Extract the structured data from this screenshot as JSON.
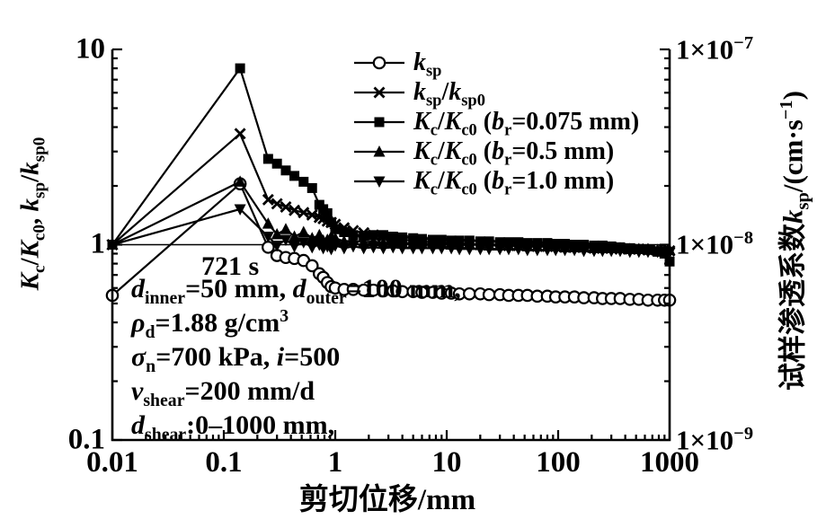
{
  "chart_data": {
    "type": "line",
    "title": "",
    "grid": false,
    "legend_position": "upper-center-right, no frame",
    "x_axis": {
      "label": "剪切位移/mm",
      "scale": "log",
      "range": [
        0.01,
        1000
      ],
      "tick_labels": [
        "0.01",
        "0.1",
        "1",
        "10",
        "100",
        "1000"
      ],
      "tick_values": [
        0.01,
        0.1,
        1,
        10,
        100,
        1000
      ]
    },
    "y_left": {
      "label": "Kc/Kc0, ksp/ksp0",
      "label_html": "<i>K</i><sub>c</sub>/<i>K</i><sub>c0</sub>, <i>k</i><sub>sp</sub>/<i>k</i><sub>sp0</sub>",
      "scale": "log",
      "range": [
        0.1,
        10
      ],
      "tick_labels": [
        "10",
        "1",
        "0.1"
      ],
      "tick_values": [
        10,
        1,
        0.1
      ]
    },
    "y_right": {
      "label": "试样渗透系数ksp/(cm·s−1)",
      "label_html": "试样渗透系数<i>k</i><sub>sp</sub>/(cm·s<sup>−1</sup>)",
      "scale": "log",
      "range": [
        1e-09,
        1e-07
      ],
      "tick_labels": [
        "1×10−7",
        "1×10−8",
        "1×10−9"
      ],
      "tick_labels_html": [
        "1×10<sup>−7</sup>",
        "1×10<sup>−8</sup>",
        "1×10<sup>−9</sup>"
      ],
      "tick_values": [
        1e-07,
        1e-08,
        1e-09
      ]
    },
    "reference_line_y": 1,
    "series_color": "#000000",
    "series": [
      {
        "name": "k_sp",
        "axis": "right",
        "marker": "circle-open",
        "units": "cm/s",
        "x": [
          0.01,
          0.14,
          0.25,
          0.3,
          0.36,
          0.43,
          0.52,
          0.62,
          0.72,
          0.78,
          0.85,
          0.92,
          1.0,
          1.2,
          1.45,
          1.8,
          2.2,
          2.7,
          3.3,
          4,
          5,
          6,
          7.5,
          9,
          11,
          13,
          16,
          20,
          24,
          30,
          36,
          44,
          53,
          65,
          80,
          95,
          115,
          140,
          170,
          210,
          250,
          300,
          360,
          440,
          530,
          640,
          780,
          900,
          1000
        ],
        "y": [
          5.5e-09,
          2.05e-08,
          9.7e-09,
          8.8e-09,
          8.6e-09,
          8.5e-09,
          8.3e-09,
          7.8e-09,
          7.1e-09,
          6.8e-09,
          6.4e-09,
          6.1e-09,
          6e-09,
          5.9e-09,
          5.9e-09,
          5.85e-09,
          5.85e-09,
          5.8e-09,
          5.8e-09,
          5.75e-09,
          5.75e-09,
          5.7e-09,
          5.7e-09,
          5.65e-09,
          5.65e-09,
          5.6e-09,
          5.6e-09,
          5.6e-09,
          5.55e-09,
          5.55e-09,
          5.5e-09,
          5.5e-09,
          5.5e-09,
          5.45e-09,
          5.45e-09,
          5.4e-09,
          5.4e-09,
          5.4e-09,
          5.35e-09,
          5.35e-09,
          5.3e-09,
          5.3e-09,
          5.3e-09,
          5.25e-09,
          5.25e-09,
          5.2e-09,
          5.2e-09,
          5.2e-09,
          5.2e-09
        ]
      },
      {
        "name": "k_sp/k_sp0",
        "axis": "left",
        "marker": "x",
        "units": "ratio",
        "x": [
          0.01,
          0.14,
          0.25,
          0.3,
          0.36,
          0.43,
          0.52,
          0.62,
          0.72,
          0.78,
          0.85,
          0.92,
          1.0,
          1.2,
          1.45,
          1.8,
          2.2,
          2.7,
          3.3,
          4,
          5,
          6,
          7.5,
          9,
          11,
          13,
          16,
          20,
          24,
          30,
          36,
          44,
          53,
          65,
          80,
          95,
          115,
          140,
          170,
          210,
          250,
          300,
          360,
          440,
          530,
          640,
          780,
          900,
          1000
        ],
        "y": [
          1,
          3.7,
          1.7,
          1.62,
          1.56,
          1.5,
          1.46,
          1.42,
          1.38,
          1.36,
          1.32,
          1.3,
          1.27,
          1.22,
          1.18,
          1.15,
          1.12,
          1.1,
          1.08,
          1.06,
          1.05,
          1.04,
          1.03,
          1.02,
          1.02,
          1.01,
          1.01,
          1.0,
          1.0,
          1.0,
          0.99,
          0.99,
          0.99,
          0.98,
          0.98,
          0.98,
          0.97,
          0.97,
          0.97,
          0.96,
          0.96,
          0.96,
          0.95,
          0.95,
          0.95,
          0.94,
          0.94,
          0.94,
          0.93
        ]
      },
      {
        "name": "K_c/K_c0 (b_r=0.075 mm)",
        "axis": "left",
        "marker": "square",
        "units": "ratio",
        "x": [
          0.01,
          0.14,
          0.25,
          0.3,
          0.36,
          0.43,
          0.52,
          0.62,
          0.72,
          0.78,
          0.85,
          0.92,
          1.0,
          1.2,
          1.45,
          1.8,
          2.2,
          2.7,
          3.3,
          4,
          5,
          6,
          7.5,
          9,
          11,
          13,
          16,
          20,
          24,
          30,
          36,
          44,
          53,
          65,
          80,
          95,
          115,
          140,
          170,
          210,
          250,
          300,
          360,
          440,
          530,
          640,
          780,
          900,
          1000
        ],
        "y": [
          1,
          8.0,
          2.75,
          2.6,
          2.4,
          2.25,
          2.1,
          1.95,
          1.6,
          1.52,
          1.45,
          1.3,
          1.2,
          1.16,
          1.12,
          1.11,
          1.12,
          1.12,
          1.1,
          1.09,
          1.08,
          1.07,
          1.06,
          1.06,
          1.05,
          1.05,
          1.05,
          1.04,
          1.04,
          1.03,
          1.03,
          1.03,
          1.02,
          1.02,
          1.02,
          1.01,
          1.01,
          1.0,
          1.0,
          0.99,
          0.99,
          0.98,
          0.97,
          0.96,
          0.95,
          0.94,
          0.92,
          0.9,
          0.82
        ]
      },
      {
        "name": "K_c/K_c0 (b_r=0.5 mm)",
        "axis": "left",
        "marker": "triangle-up",
        "units": "ratio",
        "x": [
          0.01,
          0.14,
          0.25,
          0.3,
          0.36,
          0.43,
          0.52,
          0.62,
          0.72,
          0.78,
          0.85,
          0.92,
          1.0,
          1.2,
          1.45,
          1.8,
          2.2,
          2.7,
          3.3,
          4,
          5,
          6,
          7.5,
          9,
          11,
          13,
          16,
          20,
          24,
          30,
          36,
          44,
          53,
          65,
          80,
          95,
          115,
          140,
          170,
          210,
          250,
          300,
          360,
          440,
          530,
          640,
          780,
          900,
          1000
        ],
        "y": [
          1,
          2.1,
          1.28,
          1.13,
          1.2,
          1.1,
          1.16,
          1.08,
          1.12,
          1.05,
          1.06,
          1.1,
          1.08,
          1.04,
          1.05,
          1.03,
          1.04,
          1.02,
          1.03,
          1.02,
          1.02,
          1.01,
          1.01,
          1.01,
          1.0,
          1.0,
          1.0,
          1.0,
          0.99,
          0.99,
          0.99,
          0.99,
          0.98,
          0.98,
          0.98,
          0.98,
          0.97,
          0.97,
          0.97,
          0.96,
          0.96,
          0.96,
          0.96,
          0.95,
          0.95,
          0.95,
          0.94,
          0.94,
          0.94
        ]
      },
      {
        "name": "K_c/K_c0 (b_r=1.0 mm)",
        "axis": "left",
        "marker": "triangle-down",
        "units": "ratio",
        "x": [
          0.01,
          0.14,
          0.25,
          0.3,
          0.36,
          0.43,
          0.52,
          0.62,
          0.72,
          0.78,
          0.85,
          0.92,
          1.0,
          1.2,
          1.45,
          1.8,
          2.2,
          2.7,
          3.3,
          4,
          5,
          6,
          7.5,
          9,
          11,
          13,
          16,
          20,
          24,
          30,
          36,
          44,
          53,
          65,
          80,
          95,
          115,
          140,
          170,
          210,
          250,
          300,
          360,
          440,
          530,
          640,
          780,
          900,
          1000
        ],
        "y": [
          1,
          1.52,
          1.1,
          0.99,
          1.06,
          0.98,
          1.03,
          0.97,
          1.0,
          0.96,
          0.98,
          0.95,
          0.99,
          0.96,
          0.98,
          0.96,
          0.97,
          0.96,
          0.97,
          0.96,
          0.96,
          0.96,
          0.96,
          0.96,
          0.96,
          0.95,
          0.95,
          0.95,
          0.95,
          0.95,
          0.95,
          0.95,
          0.94,
          0.94,
          0.94,
          0.94,
          0.94,
          0.94,
          0.93,
          0.93,
          0.93,
          0.93,
          0.93,
          0.92,
          0.92,
          0.92,
          0.92,
          0.92,
          0.91
        ]
      }
    ]
  },
  "legend": {
    "items": [
      {
        "marker": "circle-open",
        "label": "k_sp",
        "label_html": "<i>k</i><sub>sp</sub>"
      },
      {
        "marker": "x",
        "label": "k_sp/k_sp0",
        "label_html": "<i>k</i><sub>sp</sub>/<i>k</i><sub>sp0</sub>"
      },
      {
        "marker": "square",
        "label": "K_c/K_c0 (b_r=0.075 mm)",
        "label_html": "<i>K</i><sub>c</sub>/<i>K</i><sub>c0</sub> (<i>b</i><sub>r</sub>=0.075 mm)"
      },
      {
        "marker": "triangle-up",
        "label": "K_c/K_c0 (b_r=0.5 mm)",
        "label_html": "<i>K</i><sub>c</sub>/<i>K</i><sub>c0</sub> (<i>b</i><sub>r</sub>=0.5 mm)"
      },
      {
        "marker": "triangle-down",
        "label": "K_c/K_c0 (b_r=1.0 mm)",
        "label_html": "<i>K</i><sub>c</sub>/<i>K</i><sub>c0</sub> (<i>b</i><sub>r</sub>=1.0 mm)"
      }
    ]
  },
  "annotations": {
    "time_label": "721 s",
    "lines": [
      "d_inner=50 mm, d_outer=100 mm,",
      "ρ_d=1.88 g/cm3",
      "σ_n=700 kPa, i=500",
      "v_shear=200 mm/d",
      "d_shear:0–1000 mm,"
    ],
    "lines_html": [
      "<i>d</i><sub>inner</sub>=50 mm, <i>d</i><sub>outer</sub>=100 mm,",
      "<i>ρ</i><sub>d</sub>=1.88 g/cm<sup>3</sup>",
      "<i>σ</i><sub>n</sub>=700 kPa, <i>i</i>=500",
      "<i>v</i><sub>shear</sub>=200 mm/d",
      "<i>d</i><sub>shear</sub>:0–1000 mm,"
    ]
  }
}
